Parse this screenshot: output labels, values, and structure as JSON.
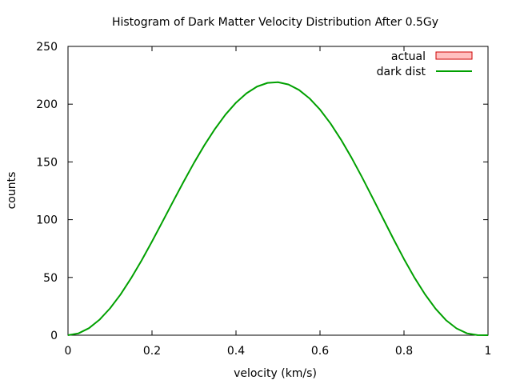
{
  "chart_data": {
    "type": "line",
    "title": "Histogram of Dark Matter Velocity Distribution After 0.5Gy",
    "xlabel": "velocity (km/s)",
    "ylabel": "counts",
    "xlim": [
      0,
      1
    ],
    "ylim": [
      0,
      250
    ],
    "x_ticks": [
      0,
      0.2,
      0.4,
      0.6,
      0.8,
      1
    ],
    "x_tick_labels": [
      "0",
      "0.2",
      "0.4",
      "0.6",
      "0.8",
      "1"
    ],
    "y_ticks": [
      0,
      50,
      100,
      150,
      200,
      250
    ],
    "y_tick_labels": [
      "0",
      "50",
      "100",
      "150",
      "200",
      "250"
    ],
    "grid": false,
    "legend_position": "top-right",
    "series": [
      {
        "name": "actual",
        "kind": "histogram",
        "color": "#cc0000",
        "fill": "#ffc0c0",
        "x": [],
        "y": []
      },
      {
        "name": "dark dist",
        "kind": "line",
        "color": "#00a000",
        "x": [
          0,
          0.025,
          0.05,
          0.075,
          0.1,
          0.125,
          0.15,
          0.175,
          0.2,
          0.225,
          0.25,
          0.275,
          0.3,
          0.325,
          0.35,
          0.375,
          0.4,
          0.425,
          0.45,
          0.475,
          0.5,
          0.525,
          0.55,
          0.575,
          0.6,
          0.625,
          0.65,
          0.675,
          0.7,
          0.725,
          0.75,
          0.775,
          0.8,
          0.825,
          0.85,
          0.875,
          0.9,
          0.925,
          0.95,
          0.975,
          1
        ],
        "y": [
          0,
          1.6,
          6.1,
          13.4,
          23.2,
          35.2,
          49.2,
          64.6,
          81.1,
          98.3,
          115.6,
          132.7,
          149.2,
          164.6,
          178.6,
          191.0,
          201.3,
          209.4,
          215.2,
          218.4,
          219.0,
          217.0,
          212.3,
          205.0,
          195.3,
          183.3,
          169.3,
          153.7,
          136.8,
          119.1,
          101.1,
          83.2,
          65.9,
          49.8,
          35.4,
          23.0,
          13.0,
          5.9,
          1.6,
          0.1,
          0
        ]
      }
    ]
  }
}
